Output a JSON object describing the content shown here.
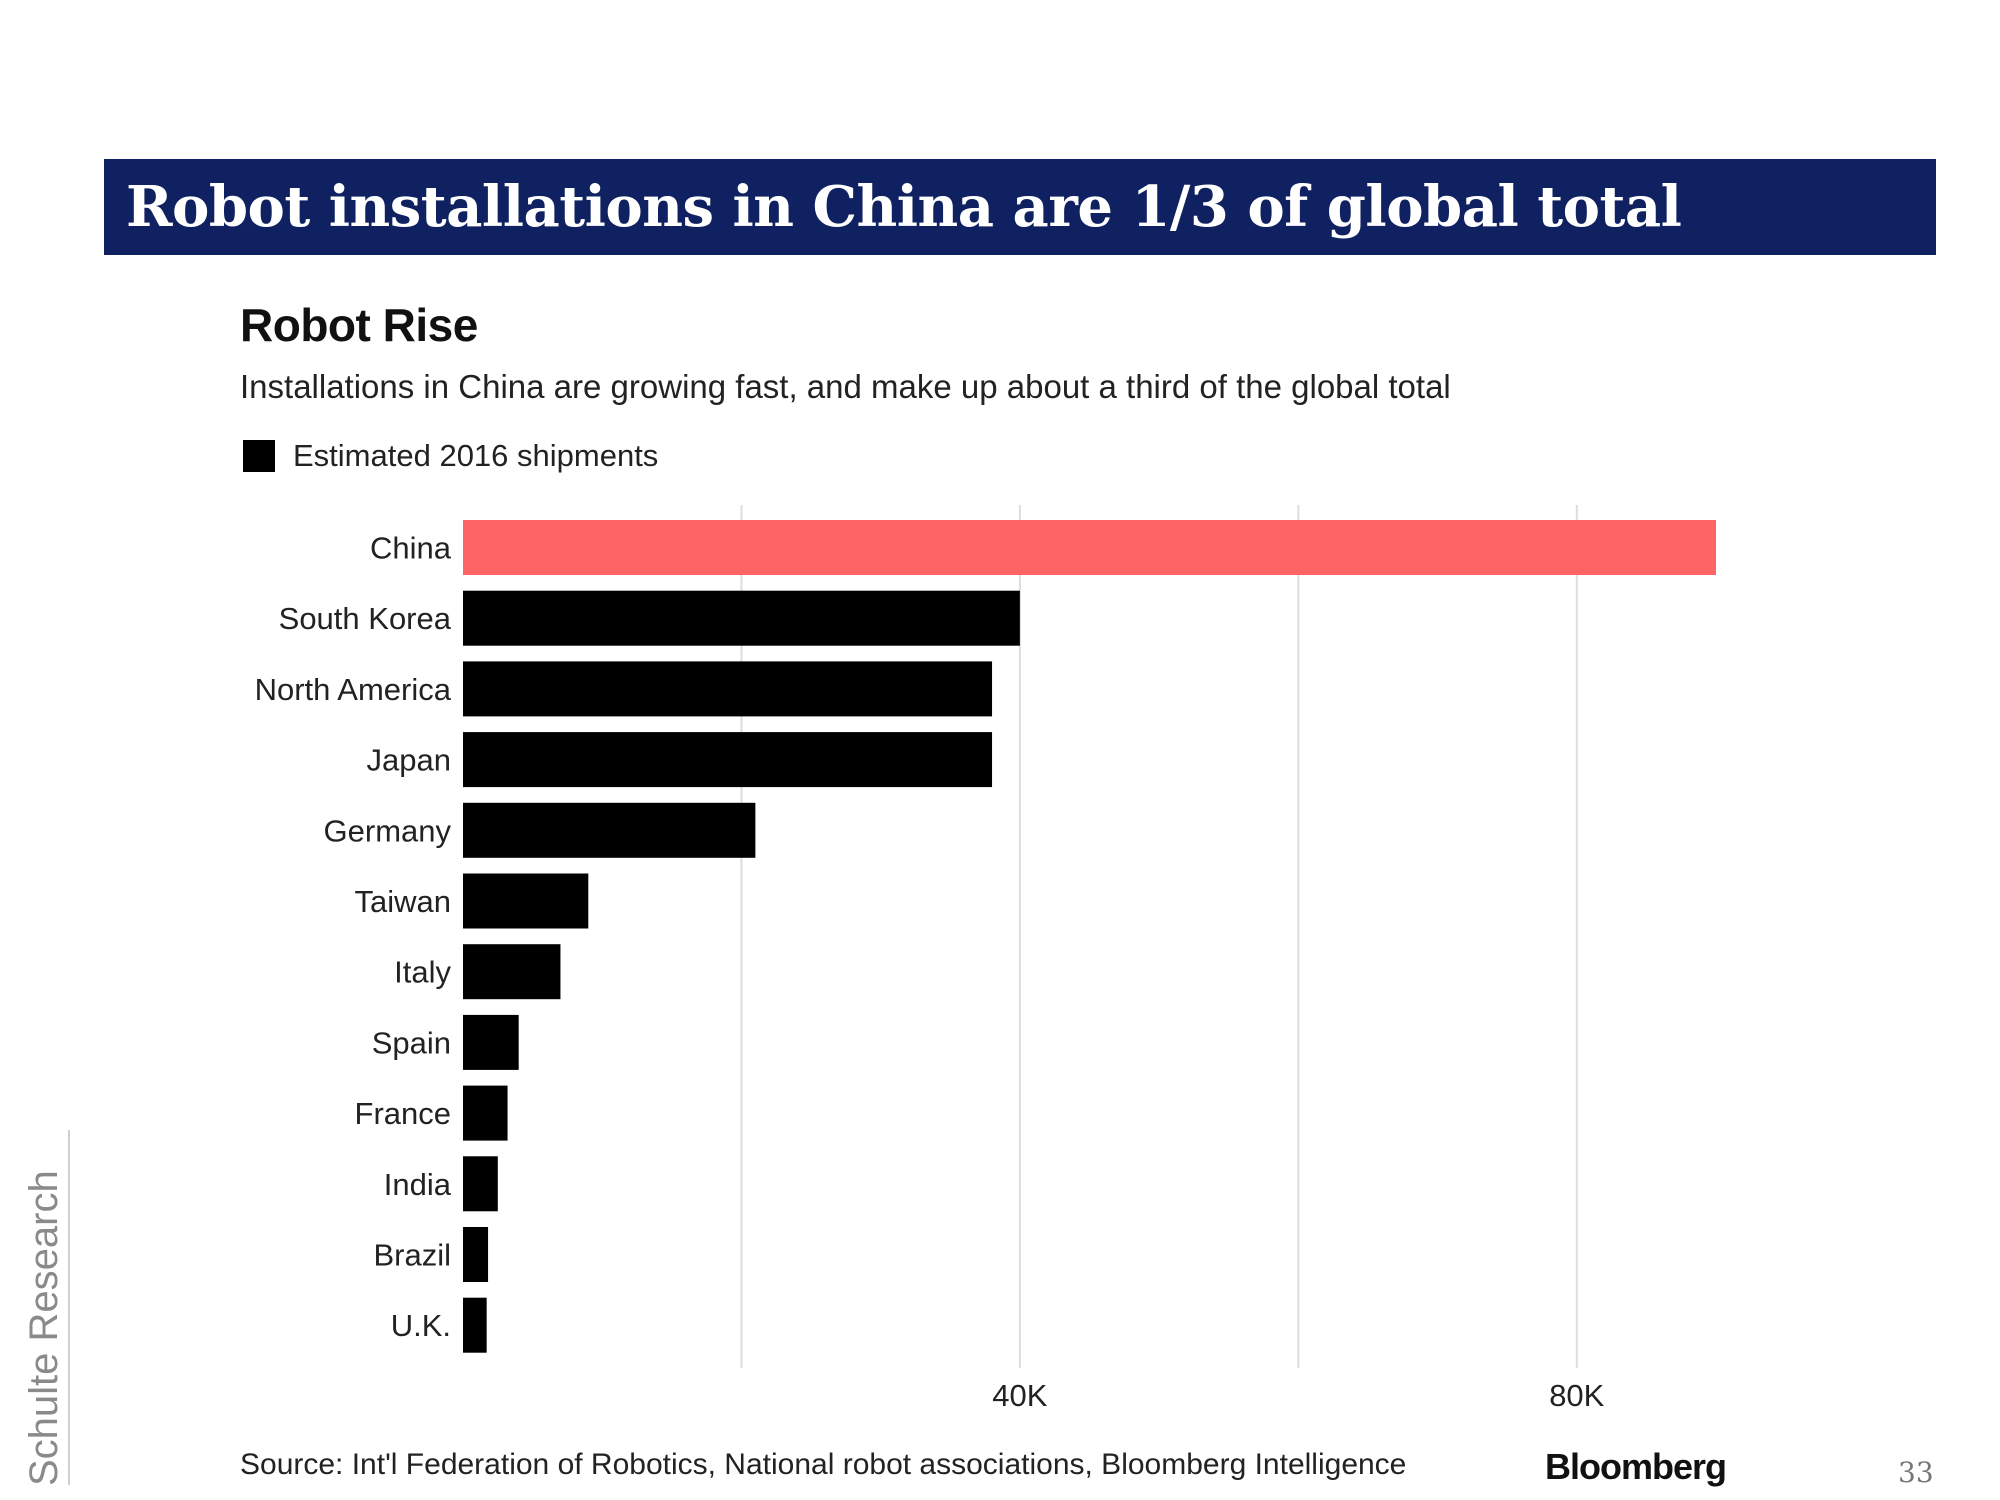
{
  "slide": {
    "title": "Robot installations in China are 1/3 of global total",
    "page_number": "33",
    "side_label": "Schulte Research",
    "banner_color": "#0f2160"
  },
  "chart": {
    "heading": "Robot Rise",
    "subtitle": "Installations in China are growing fast, and make up about a third of the global total",
    "legend_label": "Estimated 2016 shipments",
    "source": "Source: Int'l Federation of Robotics, National robot associations, Bloomberg Intelligence",
    "brand": "Bloomberg"
  },
  "chart_data": {
    "type": "bar",
    "orientation": "horizontal",
    "title": "Robot Rise",
    "subtitle": "Installations in China are growing fast, and make up about a third of the global total",
    "categories": [
      "China",
      "South Korea",
      "North America",
      "Japan",
      "Germany",
      "Taiwan",
      "Italy",
      "Spain",
      "France",
      "India",
      "Brazil",
      "U.K."
    ],
    "series": [
      {
        "name": "Estimated 2016 shipments",
        "values": [
          90000,
          40000,
          38000,
          38000,
          21000,
          9000,
          7000,
          4000,
          3200,
          2500,
          1800,
          1700
        ]
      }
    ],
    "highlight_category": "China",
    "colors": {
      "default": "#000000",
      "highlight": "#ff6464",
      "grid": "#dddddd"
    },
    "xlim": [
      0,
      90000
    ],
    "grid_ticks": [
      0,
      20000,
      40000,
      60000,
      80000
    ],
    "tick_labels": [
      {
        "value": 40000,
        "label": "40K"
      },
      {
        "value": 80000,
        "label": "80K"
      }
    ],
    "grid": true,
    "legend_position": "top-left"
  }
}
